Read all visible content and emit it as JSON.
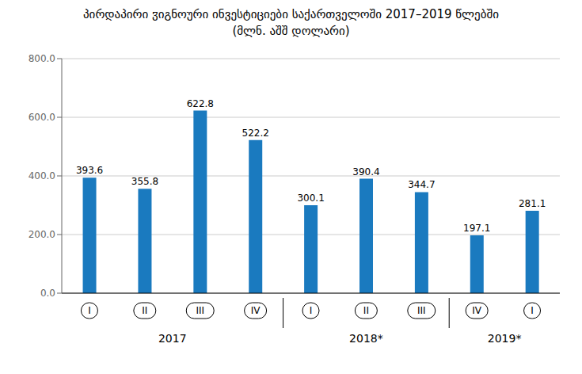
{
  "chart_data": {
    "type": "bar",
    "title": "პირდაპირი ჳიგნოური ინვესტიციები საქართველოში  2017–2019 წლებში",
    "subtitle": "(მლნ. აშშ დოლარი)",
    "categories": [
      "I",
      "II",
      "III",
      "IV",
      "I",
      "II",
      "III",
      "IV",
      "I"
    ],
    "group_labels": [
      "2017",
      "2017",
      "2017",
      "2017",
      "2018*",
      "2018*",
      "2018*",
      "2019*",
      "2019*"
    ],
    "values": [
      393.6,
      355.8,
      622.8,
      522.2,
      300.1,
      390.4,
      344.7,
      197.1,
      281.1
    ],
    "color": "#1a7abf",
    "ylim": [
      0,
      800
    ],
    "yticks": [
      {
        "value": 0,
        "label": "0.0"
      },
      {
        "value": 200,
        "label": "200.0"
      },
      {
        "value": 400,
        "label": "400.0"
      },
      {
        "value": 600,
        "label": "600.0"
      },
      {
        "value": 800,
        "label": "800.0"
      }
    ],
    "grid": true,
    "data_labels": true
  }
}
